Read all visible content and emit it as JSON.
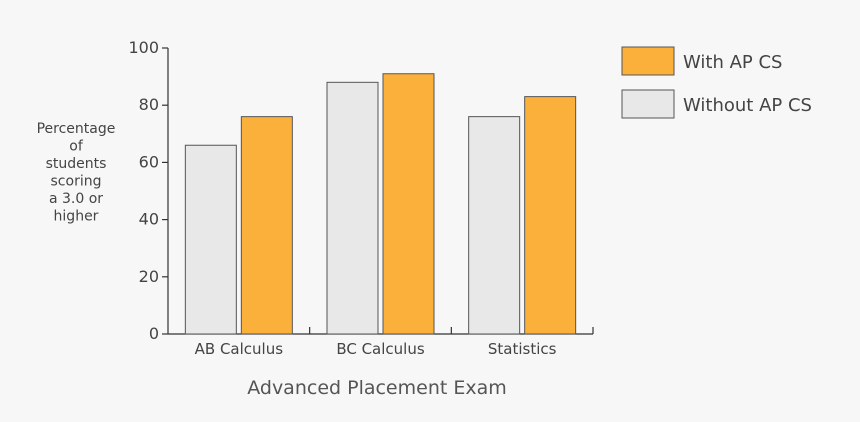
{
  "chart_data": {
    "type": "bar",
    "xlabel": "Advanced Placement Exam",
    "ylabel_lines": [
      "Percentage",
      "of",
      "students",
      "scoring",
      "a 3.0 or",
      "higher"
    ],
    "ylim": [
      0,
      100
    ],
    "yticks": [
      0,
      20,
      40,
      60,
      80,
      100
    ],
    "categories": [
      "AB Calculus",
      "BC Calculus",
      "Statistics"
    ],
    "series": [
      {
        "name": "Without AP CS",
        "color": "#e8e8e8",
        "values": [
          66,
          88,
          76
        ]
      },
      {
        "name": "With AP CS",
        "color": "#fbb03b",
        "values": [
          76,
          91,
          83
        ]
      }
    ],
    "legend_order": [
      "With AP CS",
      "Without AP CS"
    ],
    "legend_position": "top-right",
    "grid": false
  }
}
